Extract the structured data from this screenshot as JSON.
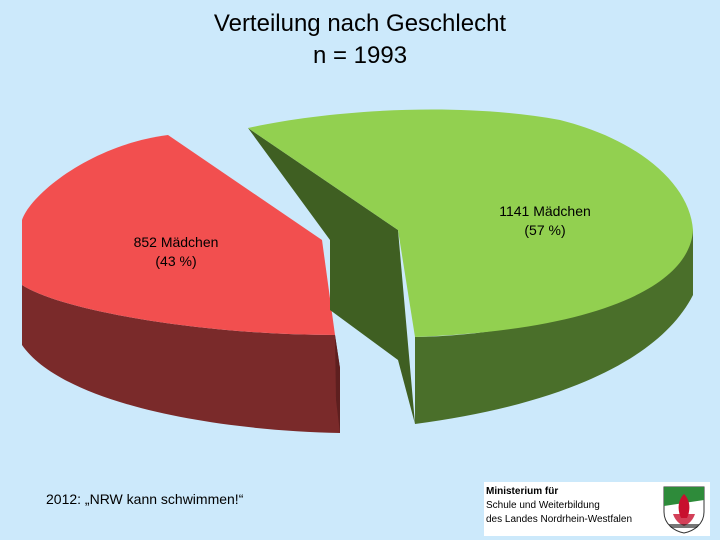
{
  "title": {
    "line1": "Verteilung nach Geschlecht",
    "line2": "n = 1993"
  },
  "chart_data": {
    "type": "pie",
    "title": "Verteilung nach Geschlecht n = 1993",
    "slices": [
      {
        "value": 852,
        "percent": 43,
        "label_line1": "852 Mädchen",
        "label_line2": "(43 %)",
        "top_color": "#f24f4f",
        "side_color": "#7a2a2a"
      },
      {
        "value": 1141,
        "percent": 57,
        "label_line1": "1141 Mädchen",
        "label_line2": "(57 %)",
        "top_color": "#92d050",
        "side_color": "#4a6f2a"
      }
    ]
  },
  "footer": {
    "text": "2012: „NRW kann schwimmen!“"
  },
  "logo": {
    "line1": "Ministerium für",
    "line2": "Schule und Weiterbildung",
    "line3": "des Landes Nordrhein-Westfalen"
  }
}
